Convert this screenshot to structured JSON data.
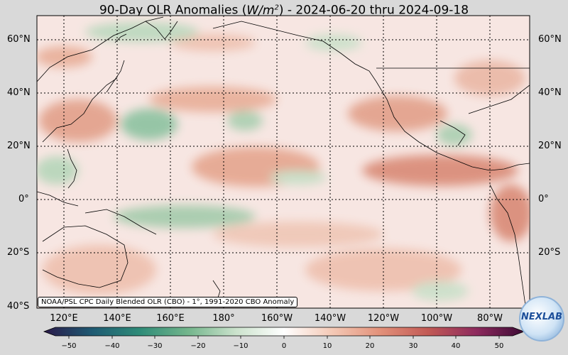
{
  "title": {
    "prefix": "90-Day OLR Anomalies (",
    "unit_main": "W/m",
    "unit_exp": "2",
    "suffix": ") - 2024-06-20 thru 2024-09-18"
  },
  "lat_labels": [
    "60°N",
    "40°N",
    "20°N",
    "0°",
    "20°S",
    "40°S"
  ],
  "lon_labels": [
    "120°E",
    "140°E",
    "160°E",
    "180°",
    "160°W",
    "140°W",
    "120°W",
    "100°W",
    "80°W"
  ],
  "credit": "NOAA/PSL CPC Daily Blended OLR (CBO) - 1°, 1991-2020 CBO Anomaly",
  "colorbar": {
    "ticks": [
      "−50",
      "−40",
      "−30",
      "−20",
      "−10",
      "0",
      "10",
      "20",
      "30",
      "40",
      "50"
    ],
    "range": [
      -50,
      50
    ],
    "colors": {
      "neg_50": "#2b1a4a",
      "neg_40": "#1f5a73",
      "neg_30": "#2f8c78",
      "neg_20": "#73b58c",
      "neg_10": "#cbe2cc",
      "zero": "#ffffff",
      "pos_10": "#f4c9b6",
      "pos_20": "#e2917a",
      "pos_30": "#c25a55",
      "pos_40": "#8e2b5e",
      "pos_50": "#3d0a35"
    }
  },
  "logo_text": "NEXLAB",
  "colors": {
    "background": "#d9d9d9",
    "map_base": "#f7e6e2"
  }
}
